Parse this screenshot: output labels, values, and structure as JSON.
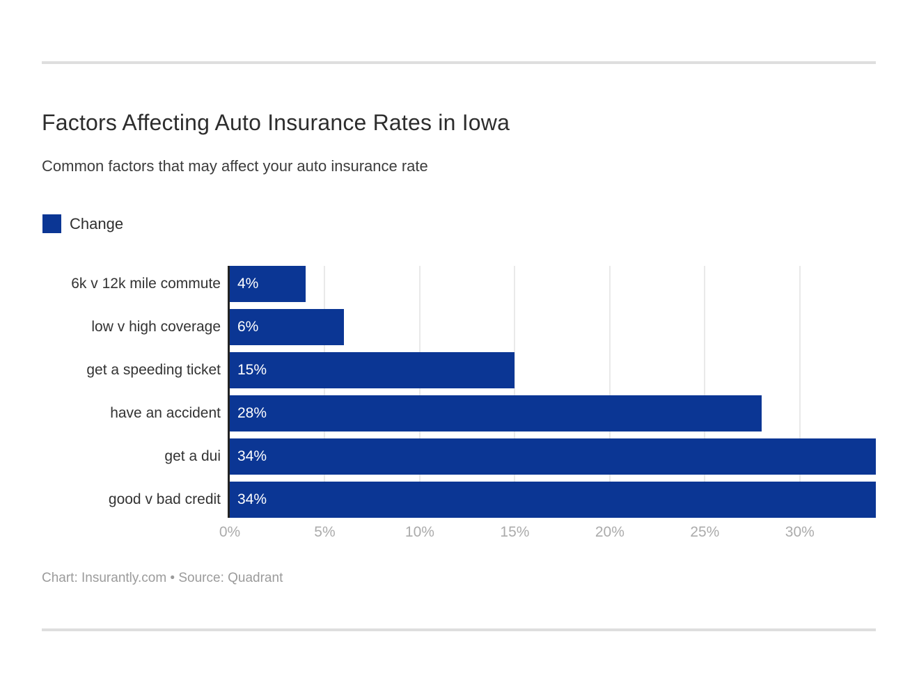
{
  "header": {
    "title": "Factors Affecting Auto Insurance Rates in Iowa",
    "subtitle": "Common factors that may affect your auto insurance rate"
  },
  "legend": {
    "label": "Change",
    "color": "#0b3694"
  },
  "chart_data": {
    "type": "bar",
    "orientation": "horizontal",
    "title": "Factors Affecting Auto Insurance Rates in Iowa",
    "subtitle": "Common factors that may affect your auto insurance rate",
    "series_name": "Change",
    "categories": [
      "6k v 12k mile commute",
      "low v high coverage",
      "get a speeding ticket",
      "have an accident",
      "get a dui",
      "good v bad credit"
    ],
    "values": [
      4,
      6,
      15,
      28,
      34,
      34
    ],
    "value_labels": [
      "4%",
      "6%",
      "15%",
      "28%",
      "34%",
      "34%"
    ],
    "xlabel": "",
    "ylabel": "",
    "xlim": [
      0,
      34
    ],
    "x_tick_values": [
      0,
      5,
      10,
      15,
      20,
      25,
      30
    ],
    "x_tick_labels": [
      "0%",
      "5%",
      "10%",
      "15%",
      "20%",
      "25%",
      "30%"
    ],
    "bar_color": "#0b3694",
    "grid": "vertical",
    "legend_position": "top-left"
  },
  "footer": {
    "credit": "Chart: Insurantly.com • Source: Quadrant"
  }
}
